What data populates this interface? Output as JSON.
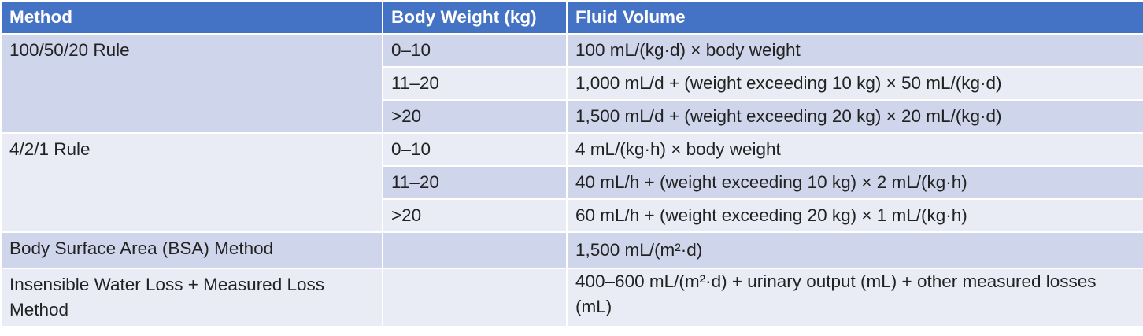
{
  "table": {
    "header": [
      "Method",
      "Body Weight (kg)",
      "Fluid Volume"
    ],
    "groups": [
      {
        "method": "100/50/20 Rule",
        "rows": [
          {
            "weight": "0–10",
            "volume": "100 mL/(kg·d) × body weight"
          },
          {
            "weight": "11–20",
            "volume": "1,000 mL/d + (weight exceeding 10 kg) × 50 mL/(kg·d)"
          },
          {
            "weight": ">20",
            "volume": "1,500 mL/d + (weight exceeding 20 kg) × 20 mL/(kg·d)"
          }
        ]
      },
      {
        "method": "4/2/1 Rule",
        "rows": [
          {
            "weight": "0–10",
            "volume": "4 mL/(kg·h) × body weight"
          },
          {
            "weight": "11–20",
            "volume": "40 mL/h + (weight exceeding 10 kg) × 2 mL/(kg·h)"
          },
          {
            "weight": ">20",
            "volume": "60 mL/h + (weight exceeding 20 kg) × 1 mL/(kg·h)"
          }
        ]
      },
      {
        "method": "Body Surface Area (BSA) Method",
        "rows": [
          {
            "volume": "1,500 mL/(m²·d)"
          }
        ]
      },
      {
        "method": "Insensible Water Loss + Measured Loss Method",
        "rows": [
          {
            "volume": "400–600 mL/(m²·d) + urinary output (mL) + other measured losses (mL)"
          }
        ]
      }
    ]
  }
}
